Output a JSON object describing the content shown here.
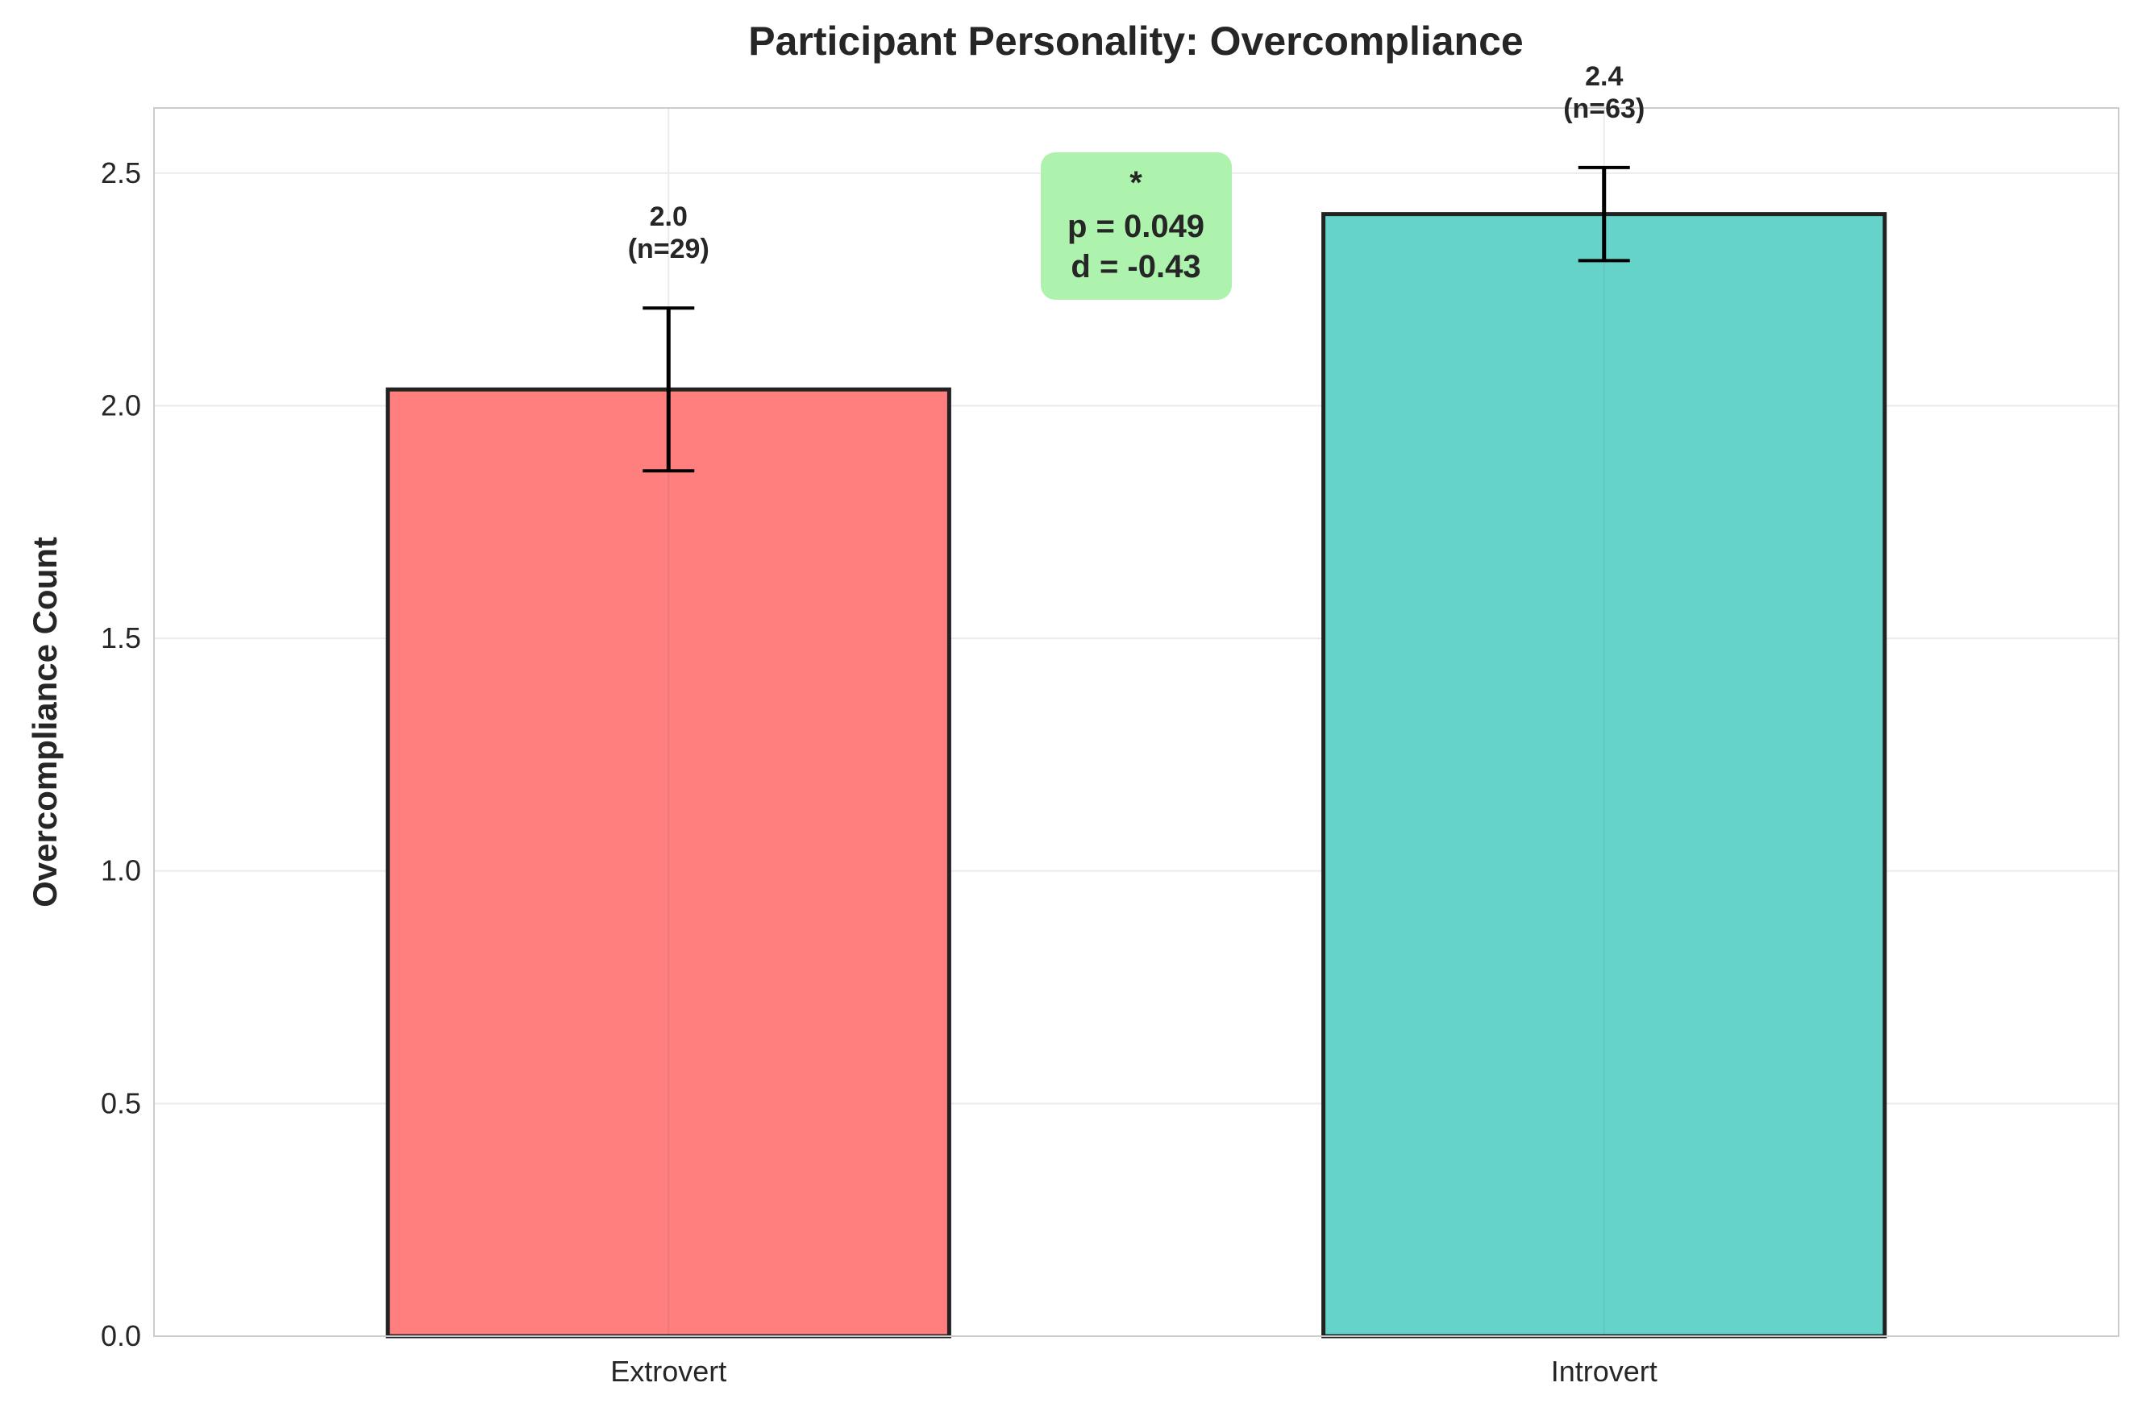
{
  "chart_data": {
    "type": "bar",
    "title": "Participant Personality: Overcompliance",
    "xlabel": "",
    "ylabel": "Overcompliance Count",
    "categories": [
      "Extrovert",
      "Introvert"
    ],
    "values": [
      2.035,
      2.412
    ],
    "error": [
      0.175,
      0.1
    ],
    "value_labels": [
      "2.0",
      "2.4"
    ],
    "n_labels": [
      "(n=29)",
      "(n=63)"
    ],
    "colors": [
      "#ff7f7f",
      "#66d3cb"
    ],
    "ylim": [
      0,
      2.64
    ],
    "yticks": [
      "0.0",
      "0.5",
      "1.0",
      "1.5",
      "2.0",
      "2.5"
    ],
    "grid": true,
    "annotation": {
      "lines": [
        "*",
        "p = 0.049",
        "d = -0.43"
      ],
      "background": "#adf2ad"
    }
  }
}
